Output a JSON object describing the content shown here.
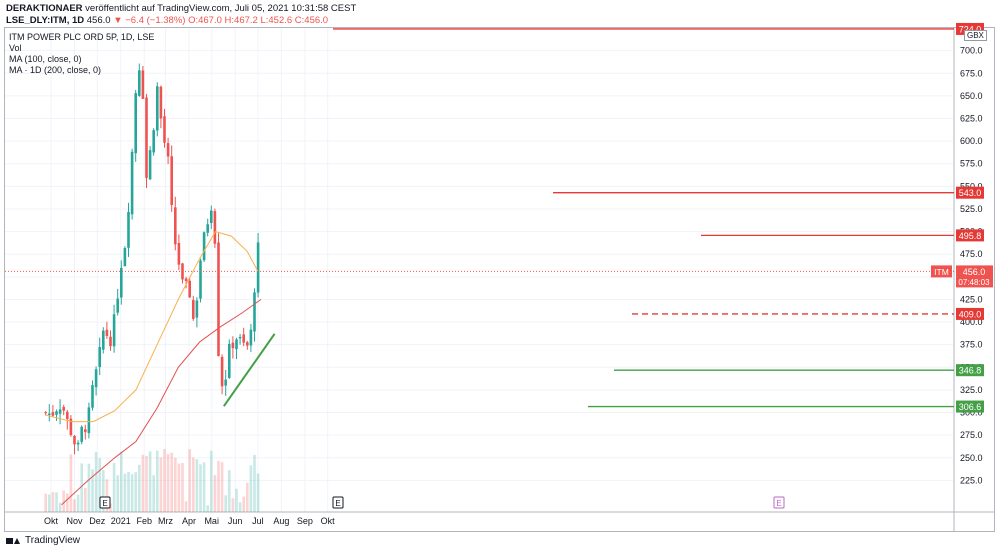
{
  "header": {
    "author": "DERAKTIONAER",
    "published": "veröffentlicht auf TradingView.com, Juli 05, 2021 10:31:58 CEST",
    "symbol": "LSE_DLY:ITM, 1D",
    "last": "456.0",
    "change": "▼ −6.4 (−1.38%)",
    "ohlc_o": "O:467.0",
    "ohlc_h": "H:467.2",
    "ohlc_l": "L:452.6",
    "ohlc_c": "C:456.0"
  },
  "legend": {
    "title": "ITM POWER PLC ORD 5P, 1D, LSE",
    "vol": "Vol",
    "ma1": "MA (100, close, 0)",
    "ma2": "MA · 1D (200, close, 0)"
  },
  "currency": "GBX",
  "footer": {
    "brand": "TradingView"
  },
  "colors": {
    "up": "#26a69a",
    "down": "#ef5350",
    "ma100": "#f7b14b",
    "ma200": "#e2504d",
    "level_red": "#e53935",
    "level_green": "#43a047",
    "grid": "#f0f3fa"
  },
  "chart_data": {
    "type": "candlestick",
    "symbol": "ITM",
    "y_axis": {
      "min": 200,
      "max": 735,
      "ticks": [
        225,
        250,
        275,
        300,
        325,
        350,
        375,
        400,
        425,
        450,
        475,
        500,
        525,
        550,
        575,
        600,
        625,
        650,
        675,
        700
      ]
    },
    "x_axis": {
      "labels": [
        "Okt",
        "Nov",
        "Dez",
        "2021",
        "Feb",
        "Mrz",
        "Apr",
        "Mai",
        "Jun",
        "Jul",
        "Aug",
        "Sep",
        "Okt"
      ]
    },
    "price_labels": [
      {
        "label": "724.0",
        "value": 724.0,
        "color": "red"
      },
      {
        "label": "543.0",
        "value": 543.0,
        "color": "red"
      },
      {
        "label": "495.8",
        "value": 495.8,
        "color": "red"
      },
      {
        "label": "409.0",
        "value": 409.0,
        "color": "red",
        "dashed": true
      },
      {
        "label": "346.8",
        "value": 346.8,
        "color": "green"
      },
      {
        "label": "306.6",
        "value": 306.6,
        "color": "green"
      }
    ],
    "current": {
      "tag": "ITM",
      "price": "456.0",
      "countdown": "07:48:03",
      "value": 456.0
    },
    "events": [
      "E",
      "E",
      "E"
    ],
    "price_path": [
      {
        "t": "2020-09-24",
        "c": 300
      },
      {
        "t": "2020-10-01",
        "c": 298
      },
      {
        "t": "2020-10-08",
        "c": 307
      },
      {
        "t": "2020-10-15",
        "c": 312
      },
      {
        "t": "2020-10-22",
        "c": 290
      },
      {
        "t": "2020-10-29",
        "c": 278
      },
      {
        "t": "2020-11-05",
        "c": 255
      },
      {
        "t": "2020-11-12",
        "c": 285
      },
      {
        "t": "2020-11-19",
        "c": 290
      },
      {
        "t": "2020-11-26",
        "c": 330
      },
      {
        "t": "2020-12-03",
        "c": 355
      },
      {
        "t": "2020-12-10",
        "c": 395
      },
      {
        "t": "2020-12-17",
        "c": 380
      },
      {
        "t": "2020-12-24",
        "c": 400
      },
      {
        "t": "2020-12-31",
        "c": 460
      },
      {
        "t": "2021-01-07",
        "c": 490
      },
      {
        "t": "2021-01-14",
        "c": 560
      },
      {
        "t": "2021-01-21",
        "c": 660
      },
      {
        "t": "2021-01-28",
        "c": 700
      },
      {
        "t": "2021-02-04",
        "c": 560
      },
      {
        "t": "2021-02-11",
        "c": 600
      },
      {
        "t": "2021-02-18",
        "c": 660
      },
      {
        "t": "2021-02-25",
        "c": 610
      },
      {
        "t": "2021-03-04",
        "c": 580
      },
      {
        "t": "2021-03-11",
        "c": 500
      },
      {
        "t": "2021-03-18",
        "c": 470
      },
      {
        "t": "2021-03-25",
        "c": 430
      },
      {
        "t": "2021-04-01",
        "c": 440
      },
      {
        "t": "2021-04-08",
        "c": 395
      },
      {
        "t": "2021-04-15",
        "c": 465
      },
      {
        "t": "2021-04-22",
        "c": 495
      },
      {
        "t": "2021-04-29",
        "c": 530
      },
      {
        "t": "2021-05-04",
        "c": 540
      },
      {
        "t": "2021-05-07",
        "c": 430
      },
      {
        "t": "2021-05-12",
        "c": 330
      },
      {
        "t": "2021-05-19",
        "c": 340
      },
      {
        "t": "2021-05-26",
        "c": 375
      },
      {
        "t": "2021-06-02",
        "c": 385
      },
      {
        "t": "2021-06-09",
        "c": 375
      },
      {
        "t": "2021-06-16",
        "c": 370
      },
      {
        "t": "2021-06-23",
        "c": 390
      },
      {
        "t": "2021-06-28",
        "c": 465
      },
      {
        "t": "2021-07-01",
        "c": 480
      },
      {
        "t": "2021-07-05",
        "c": 456
      }
    ],
    "ma100_path": [
      {
        "t": "2020-09-24",
        "v": 297
      },
      {
        "t": "2020-10-29",
        "v": 290
      },
      {
        "t": "2020-11-26",
        "v": 290
      },
      {
        "t": "2020-12-24",
        "v": 302
      },
      {
        "t": "2021-01-21",
        "v": 325
      },
      {
        "t": "2021-02-18",
        "v": 375
      },
      {
        "t": "2021-03-18",
        "v": 425
      },
      {
        "t": "2021-04-15",
        "v": 470
      },
      {
        "t": "2021-05-06",
        "v": 500
      },
      {
        "t": "2021-05-27",
        "v": 495
      },
      {
        "t": "2021-06-17",
        "v": 478
      },
      {
        "t": "2021-07-01",
        "v": 456
      }
    ],
    "ma200_path": [
      {
        "t": "2020-10-15",
        "v": 198
      },
      {
        "t": "2020-11-19",
        "v": 225
      },
      {
        "t": "2020-12-24",
        "v": 250
      },
      {
        "t": "2021-01-21",
        "v": 268
      },
      {
        "t": "2021-02-18",
        "v": 305
      },
      {
        "t": "2021-03-18",
        "v": 350
      },
      {
        "t": "2021-04-15",
        "v": 378
      },
      {
        "t": "2021-05-13",
        "v": 395
      },
      {
        "t": "2021-06-10",
        "v": 410
      },
      {
        "t": "2021-07-05",
        "v": 425
      }
    ],
    "trend_lines": [
      {
        "from": {
          "t": "2021-05-17",
          "v": 307
        },
        "to": {
          "t": "2021-07-23",
          "v": 387
        },
        "color": "green"
      }
    ]
  }
}
